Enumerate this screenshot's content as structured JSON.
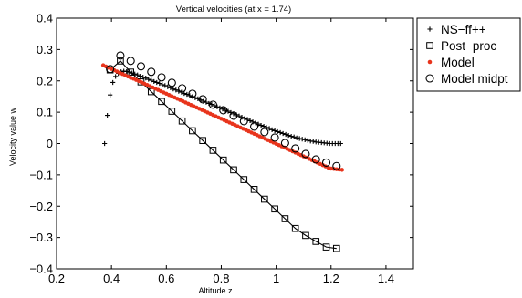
{
  "chart_data": {
    "type": "line",
    "title": "Vertical velocities (at x = 1.74)",
    "xlabel": "Altitude z",
    "ylabel": "Velocity value w",
    "xlim": [
      0.2,
      1.5
    ],
    "ylim": [
      -0.4,
      0.4
    ],
    "xticks": [
      "0.2",
      "0.4",
      "0.6",
      "0.8",
      "1",
      "1.2",
      "1.4"
    ],
    "xtick_values": [
      0.2,
      0.4,
      0.6,
      0.8,
      1.0,
      1.2,
      1.4
    ],
    "yticks": [
      "0.4",
      "0.3",
      "0.2",
      "0.1",
      "0",
      "−0.1",
      "−0.2",
      "−0.3",
      "−0.4"
    ],
    "ytick_values": [
      0.4,
      0.3,
      0.2,
      0.1,
      0.0,
      -0.1,
      -0.2,
      -0.3,
      -0.4
    ],
    "grid": false,
    "legend_position": "outside-right-top",
    "series": [
      {
        "name": "NS−ff++",
        "marker": "plus",
        "color": "#000000",
        "line": false,
        "x": [
          0.375,
          0.385,
          0.395,
          0.405,
          0.415,
          0.425,
          0.435,
          0.445,
          0.455,
          0.465,
          0.475,
          0.485,
          0.495,
          0.505,
          0.515,
          0.525,
          0.535,
          0.545,
          0.555,
          0.565,
          0.575,
          0.585,
          0.595,
          0.605,
          0.615,
          0.625,
          0.635,
          0.645,
          0.655,
          0.665,
          0.675,
          0.685,
          0.695,
          0.705,
          0.715,
          0.725,
          0.735,
          0.745,
          0.755,
          0.765,
          0.775,
          0.785,
          0.795,
          0.805,
          0.815,
          0.825,
          0.835,
          0.845,
          0.855,
          0.865,
          0.875,
          0.885,
          0.895,
          0.905,
          0.915,
          0.925,
          0.935,
          0.945,
          0.955,
          0.965,
          0.975,
          0.985,
          0.995,
          1.005,
          1.015,
          1.025,
          1.035,
          1.045,
          1.055,
          1.065,
          1.075,
          1.085,
          1.095,
          1.105,
          1.115,
          1.125,
          1.135,
          1.145,
          1.155,
          1.165,
          1.175,
          1.185,
          1.195,
          1.205,
          1.215,
          1.225,
          1.235
        ],
        "y": [
          0.0,
          0.09,
          0.155,
          0.195,
          0.214,
          0.224,
          0.229,
          0.231,
          0.23,
          0.228,
          0.225,
          0.222,
          0.219,
          0.215,
          0.212,
          0.209,
          0.205,
          0.202,
          0.198,
          0.195,
          0.192,
          0.188,
          0.185,
          0.181,
          0.178,
          0.174,
          0.171,
          0.167,
          0.164,
          0.16,
          0.157,
          0.153,
          0.15,
          0.146,
          0.143,
          0.139,
          0.135,
          0.132,
          0.128,
          0.125,
          0.121,
          0.117,
          0.114,
          0.11,
          0.106,
          0.103,
          0.099,
          0.095,
          0.092,
          0.088,
          0.084,
          0.08,
          0.077,
          0.073,
          0.069,
          0.066,
          0.062,
          0.058,
          0.055,
          0.051,
          0.048,
          0.044,
          0.041,
          0.038,
          0.035,
          0.032,
          0.029,
          0.026,
          0.023,
          0.021,
          0.018,
          0.016,
          0.014,
          0.012,
          0.01,
          0.008,
          0.007,
          0.005,
          0.004,
          0.003,
          0.002,
          0.001,
          0.0,
          0.0,
          0.0,
          0.0,
          0.0
        ]
      },
      {
        "name": "Post−proc",
        "marker": "square",
        "color": "#000000",
        "line": true,
        "x": [
          0.395,
          0.4325,
          0.47,
          0.5075,
          0.545,
          0.5825,
          0.62,
          0.6575,
          0.695,
          0.7325,
          0.77,
          0.8075,
          0.845,
          0.8825,
          0.92,
          0.9575,
          0.995,
          1.0325,
          1.07,
          1.1075,
          1.145,
          1.1825,
          1.22
        ],
        "y": [
          0.235,
          0.2635,
          0.228,
          0.1968,
          0.1656,
          0.1344,
          0.1032,
          0.072,
          0.0408,
          0.0096,
          -0.0216,
          -0.0528,
          -0.084,
          -0.1152,
          -0.1464,
          -0.1776,
          -0.2088,
          -0.24,
          -0.2712,
          -0.2935,
          -0.3125,
          -0.3305,
          -0.335
        ]
      },
      {
        "name": "Model",
        "marker": "dot",
        "color": "#e8341c",
        "line": true,
        "x": [
          0.37,
          0.38,
          0.39,
          0.4,
          0.41,
          0.42,
          0.43,
          0.44,
          0.45,
          0.46,
          0.47,
          0.48,
          0.49,
          0.5,
          0.51,
          0.52,
          0.53,
          0.54,
          0.55,
          0.56,
          0.57,
          0.58,
          0.59,
          0.6,
          0.61,
          0.62,
          0.63,
          0.64,
          0.65,
          0.66,
          0.67,
          0.68,
          0.69,
          0.7,
          0.71,
          0.72,
          0.73,
          0.74,
          0.75,
          0.76,
          0.77,
          0.78,
          0.79,
          0.8,
          0.81,
          0.82,
          0.83,
          0.84,
          0.85,
          0.86,
          0.87,
          0.88,
          0.89,
          0.9,
          0.91,
          0.92,
          0.93,
          0.94,
          0.95,
          0.96,
          0.97,
          0.98,
          0.99,
          1.0,
          1.01,
          1.02,
          1.03,
          1.04,
          1.05,
          1.06,
          1.07,
          1.08,
          1.09,
          1.1,
          1.11,
          1.12,
          1.13,
          1.14,
          1.15,
          1.16,
          1.17,
          1.18,
          1.19,
          1.2,
          1.21,
          1.22,
          1.23,
          1.24
        ],
        "y": [
          0.25,
          0.246,
          0.242,
          0.238,
          0.234,
          0.23,
          0.226,
          0.222,
          0.218,
          0.214,
          0.21,
          0.207,
          0.203,
          0.199,
          0.195,
          0.191,
          0.187,
          0.183,
          0.179,
          0.175,
          0.171,
          0.167,
          0.163,
          0.159,
          0.155,
          0.151,
          0.147,
          0.143,
          0.139,
          0.135,
          0.131,
          0.127,
          0.123,
          0.119,
          0.115,
          0.111,
          0.107,
          0.103,
          0.099,
          0.095,
          0.091,
          0.087,
          0.083,
          0.079,
          0.075,
          0.071,
          0.067,
          0.063,
          0.059,
          0.055,
          0.051,
          0.047,
          0.043,
          0.039,
          0.035,
          0.031,
          0.027,
          0.023,
          0.019,
          0.015,
          0.011,
          0.007,
          0.003,
          -0.001,
          -0.005,
          -0.009,
          -0.013,
          -0.017,
          -0.021,
          -0.025,
          -0.029,
          -0.033,
          -0.037,
          -0.041,
          -0.045,
          -0.049,
          -0.053,
          -0.057,
          -0.061,
          -0.065,
          -0.069,
          -0.073,
          -0.077,
          -0.08,
          -0.081,
          -0.082,
          -0.083,
          -0.084
        ]
      },
      {
        "name": "Model midpt",
        "marker": "circle",
        "color": "#000000",
        "line": false,
        "x": [
          0.395,
          0.4325,
          0.47,
          0.5075,
          0.545,
          0.5825,
          0.62,
          0.6575,
          0.695,
          0.7325,
          0.77,
          0.8075,
          0.845,
          0.8825,
          0.92,
          0.9575,
          0.995,
          1.0325,
          1.07,
          1.1075,
          1.145,
          1.1825,
          1.22
        ],
        "y": [
          0.2375,
          0.281,
          0.2638,
          0.2463,
          0.2288,
          0.2113,
          0.1939,
          0.1764,
          0.1589,
          0.1414,
          0.124,
          0.1065,
          0.089,
          0.0716,
          0.0541,
          0.0366,
          0.0191,
          0.0017,
          -0.0158,
          -0.0333,
          -0.0508,
          -0.0608,
          -0.072
        ]
      }
    ]
  }
}
